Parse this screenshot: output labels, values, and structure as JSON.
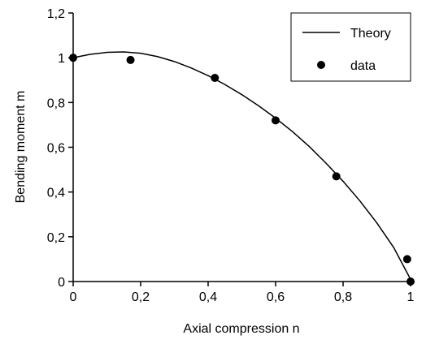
{
  "chart_data": {
    "type": "scatter",
    "title": "",
    "xlabel": "Axial compression  n",
    "ylabel": "Bending moment  m",
    "xlim": [
      0,
      1
    ],
    "ylim": [
      0,
      1.2
    ],
    "x_ticks": [
      {
        "value": 0,
        "label": "0"
      },
      {
        "value": 0.2,
        "label": "0,2"
      },
      {
        "value": 0.4,
        "label": "0,4"
      },
      {
        "value": 0.6,
        "label": "0,6"
      },
      {
        "value": 0.8,
        "label": "0,8"
      },
      {
        "value": 1,
        "label": "1"
      }
    ],
    "y_ticks": [
      {
        "value": 0,
        "label": "0"
      },
      {
        "value": 0.2,
        "label": "0,2"
      },
      {
        "value": 0.4,
        "label": "0,4"
      },
      {
        "value": 0.6,
        "label": "0,6"
      },
      {
        "value": 0.8,
        "label": "0,8"
      },
      {
        "value": 1,
        "label": "1"
      },
      {
        "value": 1.2,
        "label": "1,2"
      }
    ],
    "grid": false,
    "legend_position": "top-right",
    "series": [
      {
        "name": "Theory",
        "kind": "line",
        "color": "#000000",
        "x": [
          0,
          0.05,
          0.1,
          0.15,
          0.2,
          0.25,
          0.3,
          0.35,
          0.4,
          0.45,
          0.5,
          0.55,
          0.6,
          0.65,
          0.7,
          0.75,
          0.8,
          0.85,
          0.9,
          0.95,
          1.0
        ],
        "y": [
          1.0,
          1.015,
          1.024,
          1.026,
          1.02,
          1.005,
          0.983,
          0.954,
          0.92,
          0.88,
          0.835,
          0.785,
          0.73,
          0.67,
          0.603,
          0.528,
          0.448,
          0.36,
          0.262,
          0.152,
          0.01
        ]
      },
      {
        "name": "data",
        "kind": "points",
        "color": "#000000",
        "x": [
          0.0,
          0.17,
          0.42,
          0.6,
          0.78,
          0.99,
          1.0
        ],
        "y": [
          1.0,
          0.99,
          0.91,
          0.72,
          0.47,
          0.1,
          0.0
        ]
      }
    ]
  }
}
